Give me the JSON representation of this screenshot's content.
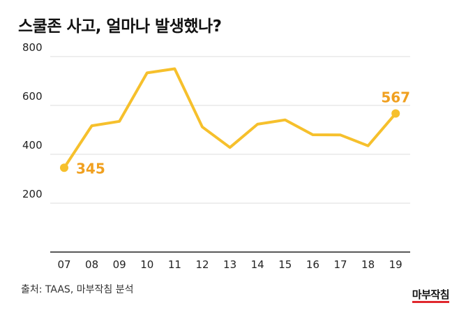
{
  "chart_data": {
    "type": "line",
    "title": "스쿨존 사고, 얼마나 발생했나?",
    "categories": [
      "07",
      "08",
      "09",
      "10",
      "11",
      "12",
      "13",
      "14",
      "15",
      "16",
      "17",
      "18",
      "19"
    ],
    "series": [
      {
        "name": "스쿨존 사고",
        "values": [
          345,
          517,
          535,
          733,
          750,
          512,
          428,
          523,
          541,
          480,
          479,
          435,
          567
        ]
      }
    ],
    "ylim": [
      0,
      800
    ],
    "yticks": [
      200,
      400,
      600,
      800
    ],
    "grid": true,
    "xlabel": "",
    "ylabel": "",
    "annotations": [
      {
        "index": 0,
        "label": "345"
      },
      {
        "index": 12,
        "label": "567"
      }
    ],
    "line_color": "#F6C02C",
    "label_color": "#F0A020"
  },
  "source": "출처: TAAS, 마부작침 분석",
  "logo": "마부작침"
}
